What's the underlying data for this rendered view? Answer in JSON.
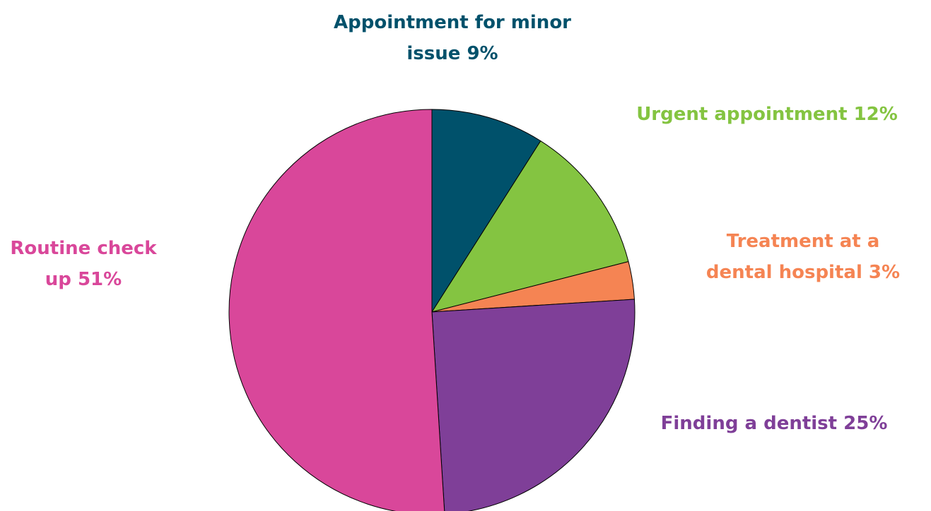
{
  "chart_data": {
    "type": "pie",
    "categories": [
      "Appointment for minor issue",
      "Urgent appointment",
      "Treatment at a dental hospital",
      "Finding a dentist",
      "Routine check up"
    ],
    "values": [
      9,
      12,
      3,
      25,
      51
    ],
    "value_labels": [
      "9%",
      "12%",
      "3%",
      "25%",
      "51%"
    ],
    "colors": [
      "#00516b",
      "#84c441",
      "#f58453",
      "#7f3f98",
      "#d9479a"
    ]
  }
}
